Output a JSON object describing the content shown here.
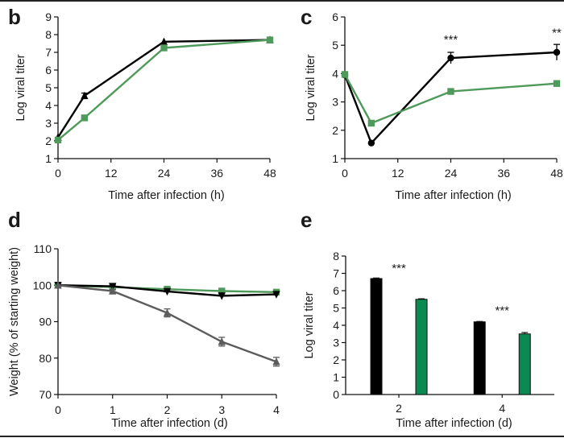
{
  "figure": {
    "colors": {
      "black": "#000000",
      "green": "#4e9a5a",
      "gray": "#5c5c5c",
      "bar_green": "#0a8a50"
    }
  },
  "chart_data": [
    {
      "panel": "b",
      "type": "line",
      "xlabel": "Time after infection (h)",
      "ylabel": "Log viral titer",
      "xlim": [
        0,
        48
      ],
      "ylim": [
        1,
        9
      ],
      "xticks": [
        0,
        12,
        24,
        36,
        48
      ],
      "yticks": [
        1,
        2,
        3,
        4,
        5,
        6,
        7,
        8,
        9
      ],
      "series": [
        {
          "name": "black-triangle",
          "color": "#000000",
          "marker": "triangle",
          "x": [
            0,
            6,
            24,
            48
          ],
          "y": [
            2.2,
            4.55,
            7.6,
            7.7
          ],
          "err": [
            0,
            0.15,
            0,
            0
          ]
        },
        {
          "name": "green-square",
          "color": "#4e9a5a",
          "marker": "square",
          "x": [
            0,
            6,
            24,
            48
          ],
          "y": [
            2.05,
            3.3,
            7.25,
            7.7
          ],
          "err": [
            0,
            0,
            0,
            0
          ]
        }
      ],
      "annotations": []
    },
    {
      "panel": "c",
      "type": "line",
      "xlabel": "Time after infection (h)",
      "ylabel": "Log viral titer",
      "xlim": [
        0,
        48
      ],
      "ylim": [
        1,
        6
      ],
      "xticks": [
        0,
        12,
        24,
        36,
        48
      ],
      "yticks": [
        1,
        2,
        3,
        4,
        5,
        6
      ],
      "series": [
        {
          "name": "black-circle",
          "color": "#000000",
          "marker": "circle",
          "x": [
            0,
            6,
            24,
            48
          ],
          "y": [
            3.95,
            1.55,
            4.55,
            4.75
          ],
          "err": [
            0,
            0,
            0.2,
            0.28
          ]
        },
        {
          "name": "green-square",
          "color": "#4e9a5a",
          "marker": "square",
          "x": [
            0,
            6,
            24,
            48
          ],
          "y": [
            3.97,
            2.25,
            3.37,
            3.65
          ],
          "err": [
            0,
            0.08,
            0.08,
            0.05
          ]
        }
      ],
      "annotations": [
        {
          "text": "***",
          "x": 24,
          "y": 5.2
        },
        {
          "text": "**",
          "x": 48,
          "y": 5.45
        }
      ]
    },
    {
      "panel": "d",
      "type": "line",
      "xlabel": "Time after infection (d)",
      "ylabel": "Weight (% of starting weight)",
      "xlim": [
        0,
        4
      ],
      "ylim": [
        70,
        110
      ],
      "xticks": [
        0,
        1,
        2,
        3,
        4
      ],
      "yticks": [
        70,
        80,
        90,
        100,
        110
      ],
      "series": [
        {
          "name": "green-square",
          "color": "#4e9a5a",
          "marker": "square",
          "x": [
            0,
            1,
            2,
            3,
            4
          ],
          "y": [
            100,
            99.5,
            98.9,
            98.4,
            98.1
          ],
          "err": [
            0,
            0,
            0,
            0,
            0
          ]
        },
        {
          "name": "black-down-triangle",
          "color": "#000000",
          "marker": "triangle-down",
          "x": [
            0,
            1,
            2,
            3,
            4
          ],
          "y": [
            100,
            99.7,
            98.3,
            97.1,
            97.5
          ],
          "err": [
            0,
            0,
            0,
            0,
            0
          ]
        },
        {
          "name": "gray-triangle",
          "color": "#5c5c5c",
          "marker": "triangle",
          "x": [
            0,
            1,
            2,
            3,
            4
          ],
          "y": [
            100,
            98.4,
            92.4,
            84.5,
            79.0
          ],
          "err": [
            0,
            0.4,
            1.1,
            1.2,
            1.2
          ]
        }
      ],
      "annotations": []
    },
    {
      "panel": "e",
      "type": "bar",
      "xlabel": "Time after infection (d)",
      "ylabel": "Log viral titer",
      "categories": [
        "2",
        "4"
      ],
      "ylim": [
        0,
        8
      ],
      "yticks": [
        0,
        1,
        2,
        3,
        4,
        5,
        6,
        7,
        8
      ],
      "series": [
        {
          "name": "black",
          "color": "#000000",
          "values": [
            6.7,
            4.2
          ],
          "err": [
            0.03,
            0.02
          ]
        },
        {
          "name": "green",
          "color": "#0a8a50",
          "values": [
            5.5,
            3.5
          ],
          "err": [
            0.03,
            0.08
          ]
        }
      ],
      "annotations": [
        {
          "text": "***",
          "category": "2",
          "y": 7.3
        },
        {
          "text": "***",
          "category": "4",
          "y": 4.85
        }
      ]
    }
  ]
}
